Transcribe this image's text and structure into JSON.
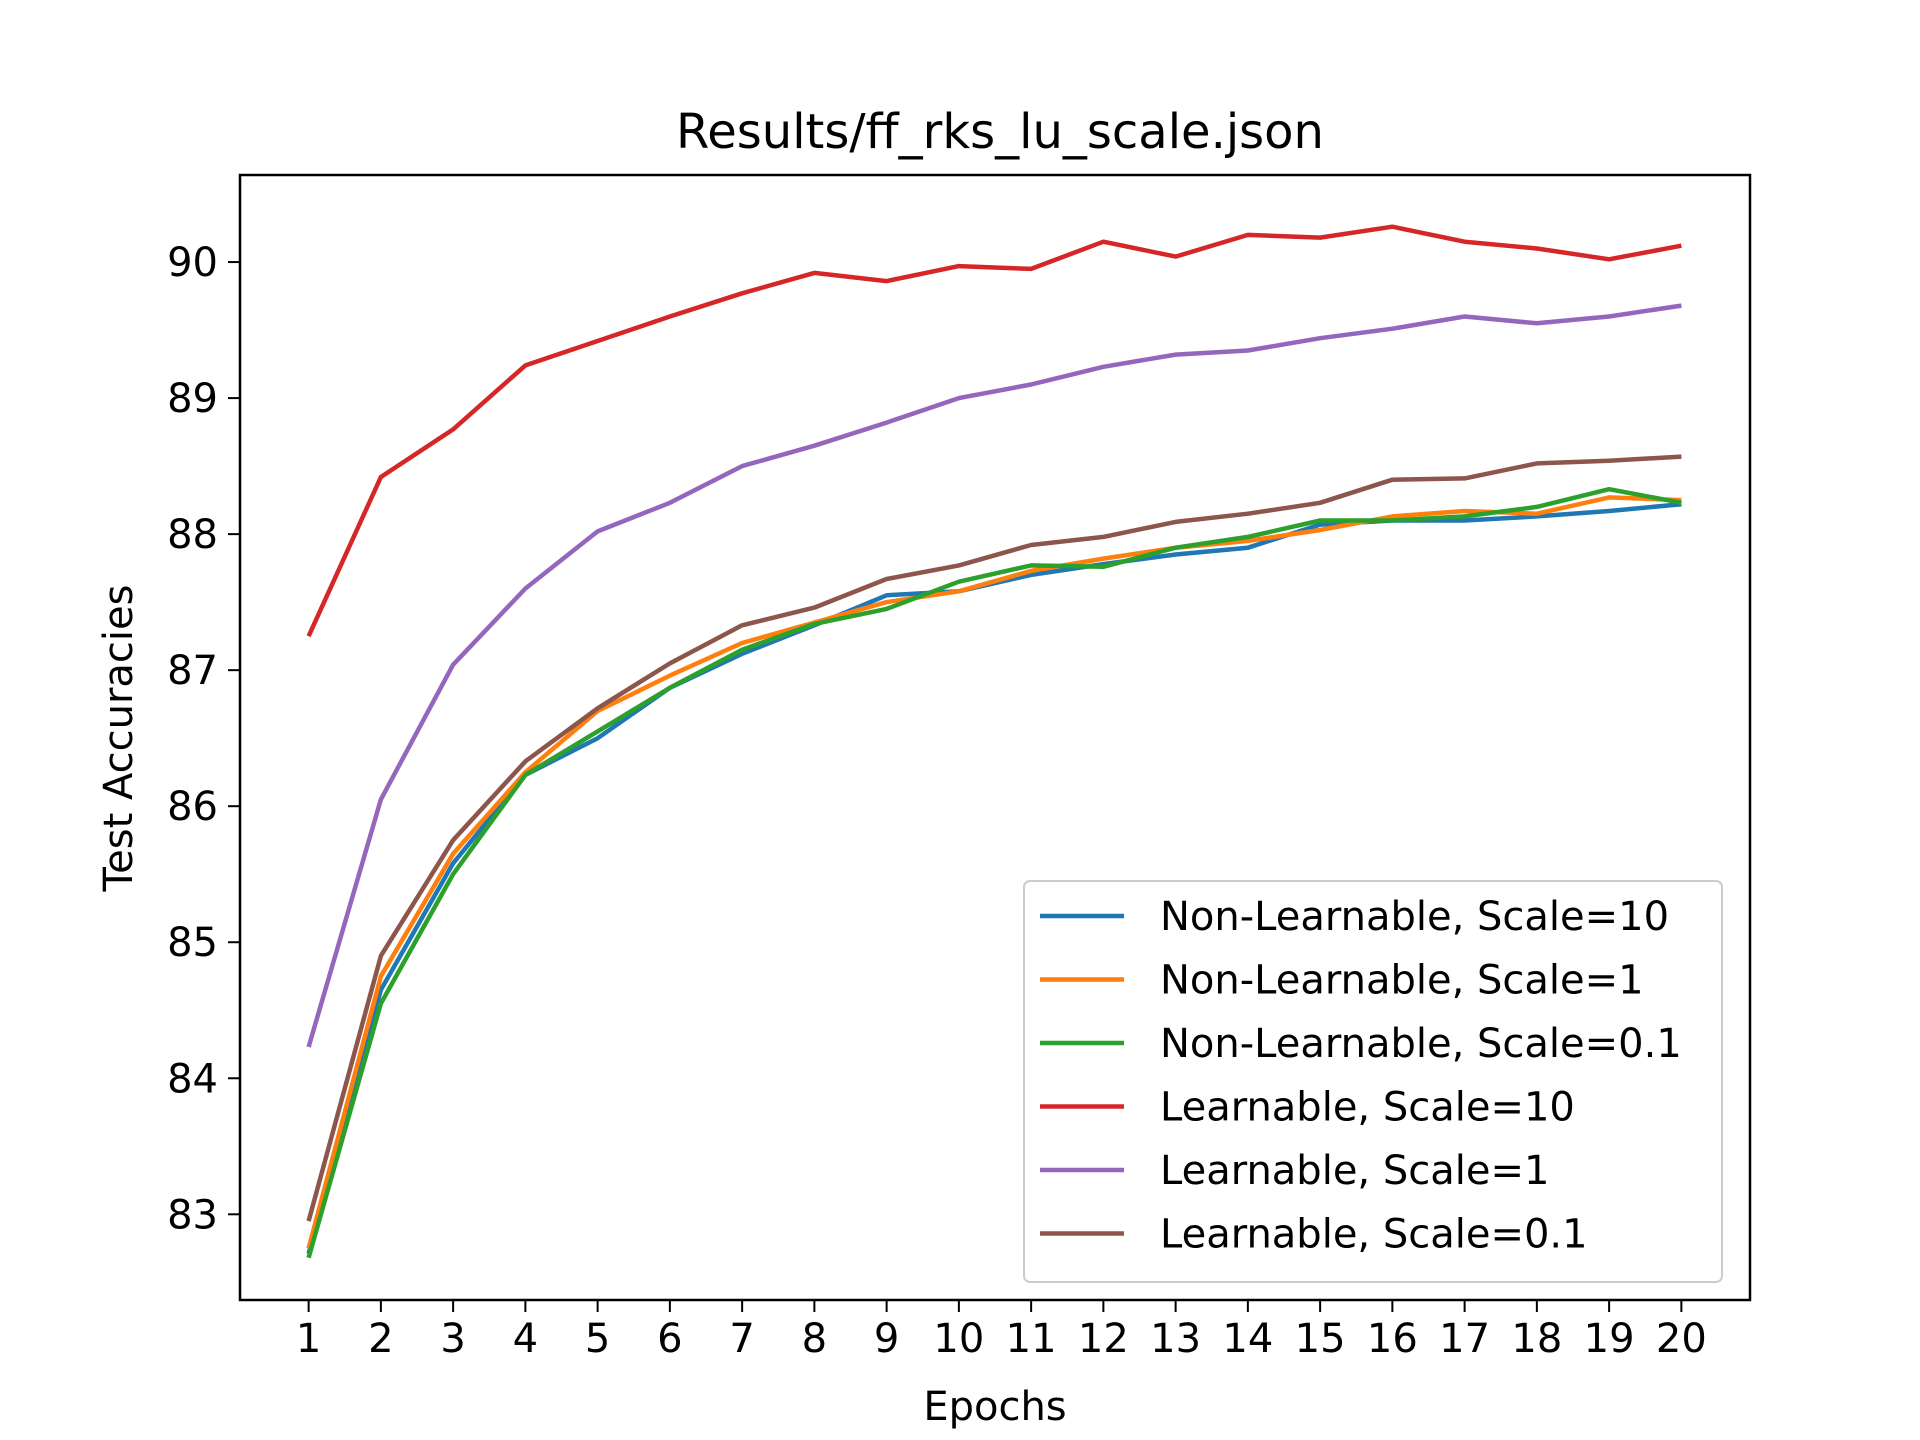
{
  "chart_data": {
    "type": "line",
    "title": "Results/ff_rks_lu_scale.json",
    "xlabel": "Epochs",
    "ylabel": "Test Accuracies",
    "x": [
      1,
      2,
      3,
      4,
      5,
      6,
      7,
      8,
      9,
      10,
      11,
      12,
      13,
      14,
      15,
      16,
      17,
      18,
      19,
      20
    ],
    "xlim": [
      0.05,
      20.95
    ],
    "ylim": [
      82.37,
      90.64
    ],
    "yticks": [
      83,
      84,
      85,
      86,
      87,
      88,
      89,
      90
    ],
    "grid": false,
    "legend_position": "lower-right",
    "series": [
      {
        "name": "Non-Learnable, Scale=10",
        "color": "#1f77b4",
        "values": [
          82.71,
          84.65,
          85.58,
          86.23,
          86.5,
          86.87,
          87.12,
          87.33,
          87.55,
          87.58,
          87.7,
          87.78,
          87.85,
          87.9,
          88.07,
          88.1,
          88.1,
          88.13,
          88.17,
          88.22
        ]
      },
      {
        "name": "Non-Learnable, Scale=1",
        "color": "#ff7f0e",
        "values": [
          82.75,
          84.75,
          85.65,
          86.25,
          86.7,
          86.96,
          87.2,
          87.35,
          87.5,
          87.58,
          87.73,
          87.82,
          87.9,
          87.95,
          88.03,
          88.13,
          88.17,
          88.15,
          88.27,
          88.25
        ]
      },
      {
        "name": "Non-Learnable, Scale=0.1",
        "color": "#2ca02c",
        "values": [
          82.68,
          84.55,
          85.5,
          86.23,
          86.55,
          86.87,
          87.15,
          87.34,
          87.45,
          87.65,
          87.77,
          87.76,
          87.9,
          87.98,
          88.1,
          88.1,
          88.13,
          88.2,
          88.33,
          88.23
        ]
      },
      {
        "name": "Learnable, Scale=10",
        "color": "#d62728",
        "values": [
          87.25,
          88.42,
          88.77,
          89.24,
          89.42,
          89.6,
          89.77,
          89.92,
          89.86,
          89.97,
          89.95,
          90.15,
          90.04,
          90.2,
          90.18,
          90.26,
          90.15,
          90.1,
          90.02,
          90.12
        ]
      },
      {
        "name": "Learnable, Scale=1",
        "color": "#9467bd",
        "values": [
          84.23,
          86.05,
          87.04,
          87.6,
          88.02,
          88.23,
          88.5,
          88.65,
          88.82,
          89.0,
          89.1,
          89.23,
          89.32,
          89.35,
          89.44,
          89.51,
          89.6,
          89.55,
          89.6,
          89.68
        ]
      },
      {
        "name": "Learnable, Scale=0.1",
        "color": "#8c564b",
        "values": [
          82.95,
          84.9,
          85.75,
          86.33,
          86.72,
          87.05,
          87.33,
          87.46,
          87.67,
          87.77,
          87.92,
          87.98,
          88.09,
          88.15,
          88.23,
          88.4,
          88.41,
          88.52,
          88.54,
          88.57
        ]
      }
    ]
  }
}
